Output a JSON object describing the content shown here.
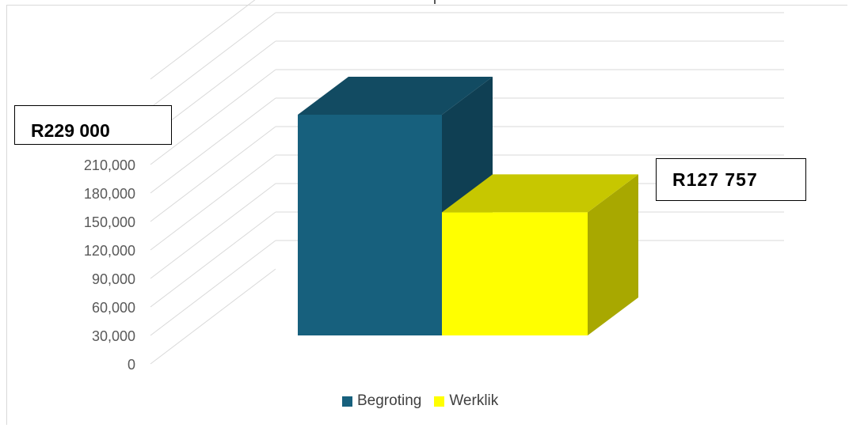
{
  "chart_data": {
    "type": "bar",
    "three_d": true,
    "categories": [
      ""
    ],
    "series": [
      {
        "name": "Begroting",
        "values": [
          229000
        ],
        "color": "#17607D"
      },
      {
        "name": "Werklik",
        "values": [
          127757
        ],
        "color": "#FFFF00"
      }
    ],
    "y_ticks": [
      "0",
      "30,000",
      "60,000",
      "90,000",
      "120,000",
      "150,000",
      "180,000",
      "210,000"
    ],
    "ylim": [
      0,
      300000
    ],
    "y_step": 30000,
    "grid": true,
    "legend_position": "bottom",
    "annotations": [
      {
        "series": "Begroting",
        "text": "R229 000"
      },
      {
        "series": "Werklik",
        "text": "R127 757"
      }
    ]
  }
}
